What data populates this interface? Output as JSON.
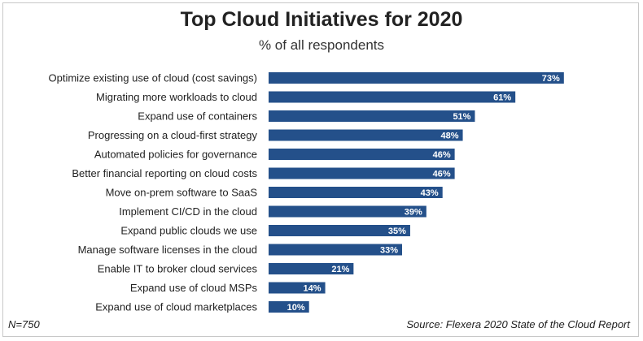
{
  "chart_data": {
    "type": "bar",
    "orientation": "horizontal",
    "title": "Top Cloud Initiatives for 2020",
    "subtitle": "% of all respondents",
    "categories": [
      "Optimize existing use of cloud (cost savings)",
      "Migrating more workloads to cloud",
      "Expand use of containers",
      "Progressing on a cloud-first strategy",
      "Automated policies for governance",
      "Better financial reporting on cloud costs",
      "Move on-prem software to SaaS",
      "Implement CI/CD in the cloud",
      "Expand public clouds we use",
      "Manage software licenses in the cloud",
      "Enable IT to broker cloud services",
      "Expand use of cloud MSPs",
      "Expand use of cloud marketplaces"
    ],
    "values": [
      73,
      61,
      51,
      48,
      46,
      46,
      43,
      39,
      35,
      33,
      21,
      14,
      10
    ],
    "value_labels": [
      "73%",
      "61%",
      "51%",
      "48%",
      "46%",
      "46%",
      "43%",
      "39%",
      "35%",
      "33%",
      "21%",
      "14%",
      "10%"
    ],
    "unit": "%",
    "xlim": [
      0,
      100
    ],
    "grid": false,
    "bar_color": "#24508a",
    "notes": {
      "sample": "N=750",
      "source": "Source: Flexera 2020 State of the Cloud Report"
    }
  }
}
